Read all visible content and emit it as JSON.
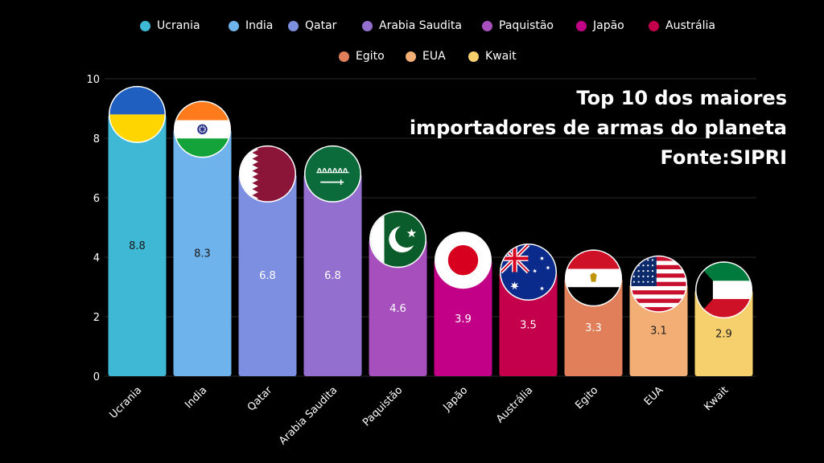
{
  "chart_data": {
    "type": "bar",
    "title_lines": [
      "Top 10 dos maiores",
      "importadores de armas do planeta",
      "Fonte:SIPRI"
    ],
    "categories": [
      "Ucrania",
      "India",
      "Qatar",
      "Arabia Saudita",
      "Paquistão",
      "Japão",
      "Austrália",
      "Egito",
      "EUA",
      "Kwait"
    ],
    "values": [
      8.8,
      8.3,
      6.8,
      6.8,
      4.6,
      3.9,
      3.5,
      3.3,
      3.1,
      2.9
    ],
    "value_labels": [
      "8.8",
      "8.3",
      "6.8",
      "6.8",
      "4.6",
      "3.9",
      "3.5",
      "3.3",
      "3.1",
      "2.9"
    ],
    "colors": [
      "#3FB8D6",
      "#6FB3EC",
      "#7C8FE0",
      "#9370D0",
      "#A84FBE",
      "#C20087",
      "#C4004C",
      "#E07F5A",
      "#F2AE74",
      "#F7D06E"
    ],
    "legend_labels": [
      "Ucrania",
      "India",
      "Qatar",
      "Arabia Saudita",
      "Paquistão",
      "Japão",
      "Austrália",
      "Egito",
      "EUA",
      "Kwait"
    ],
    "legend_placement": "top",
    "ylim": [
      0,
      10
    ],
    "yticks": [
      "0",
      "2",
      "4",
      "6",
      "8",
      "10"
    ],
    "ytick_values": [
      0,
      2,
      4,
      6,
      8,
      10
    ],
    "grid": true,
    "flag_icons": [
      "ukraine-flag-icon",
      "india-flag-icon",
      "qatar-flag-icon",
      "saudi-arabia-flag-icon",
      "pakistan-flag-icon",
      "japan-flag-icon",
      "australia-flag-icon",
      "egypt-flag-icon",
      "usa-flag-icon",
      "kuwait-flag-icon"
    ]
  }
}
